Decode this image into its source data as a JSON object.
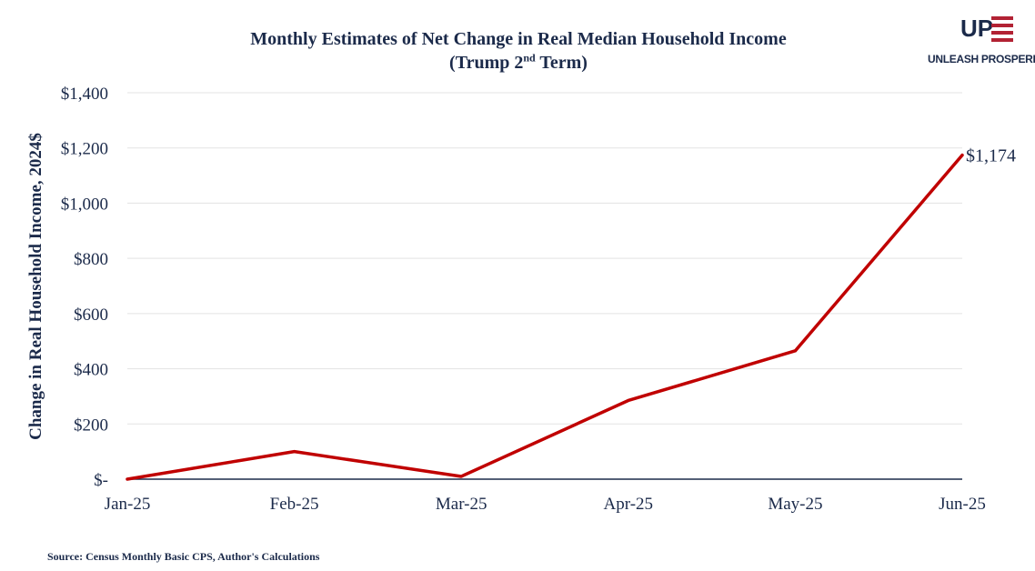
{
  "title_line1": "Monthly Estimates of Net Change in Real Median Household Income",
  "title_line2_pre": "(Trump 2",
  "title_line2_sup": "nd",
  "title_line2_post": " Term)",
  "logo": {
    "mark": "UP",
    "text": "UNLEASH PROSPERITY"
  },
  "source": "Source: Census Monthly Basic CPS, Author's Calculations",
  "colors": {
    "line": "#c00000",
    "text": "#1b2a4a",
    "grid": "#e3e3e3",
    "axis": "#1b2a4a"
  },
  "chart_data": {
    "type": "line",
    "title": "Monthly Estimates of Net Change in Real Median Household Income (Trump 2nd Term)",
    "xlabel": "",
    "ylabel": "Change in Real Household Income, 2024$",
    "categories": [
      "Jan-25",
      "Feb-25",
      "Mar-25",
      "Apr-25",
      "May-25",
      "Jun-25"
    ],
    "series": [
      {
        "values": [
          0,
          100,
          10,
          285,
          465,
          1174
        ]
      }
    ],
    "ylim": [
      0,
      1400
    ],
    "yticks": [
      0,
      200,
      400,
      600,
      800,
      1000,
      1200,
      1400
    ],
    "ytick_labels": [
      "$-",
      "$200",
      "$400",
      "$600",
      "$800",
      "$1,000",
      "$1,200",
      "$1,400"
    ],
    "end_label": "$1,174",
    "grid": true,
    "legend": "none"
  }
}
